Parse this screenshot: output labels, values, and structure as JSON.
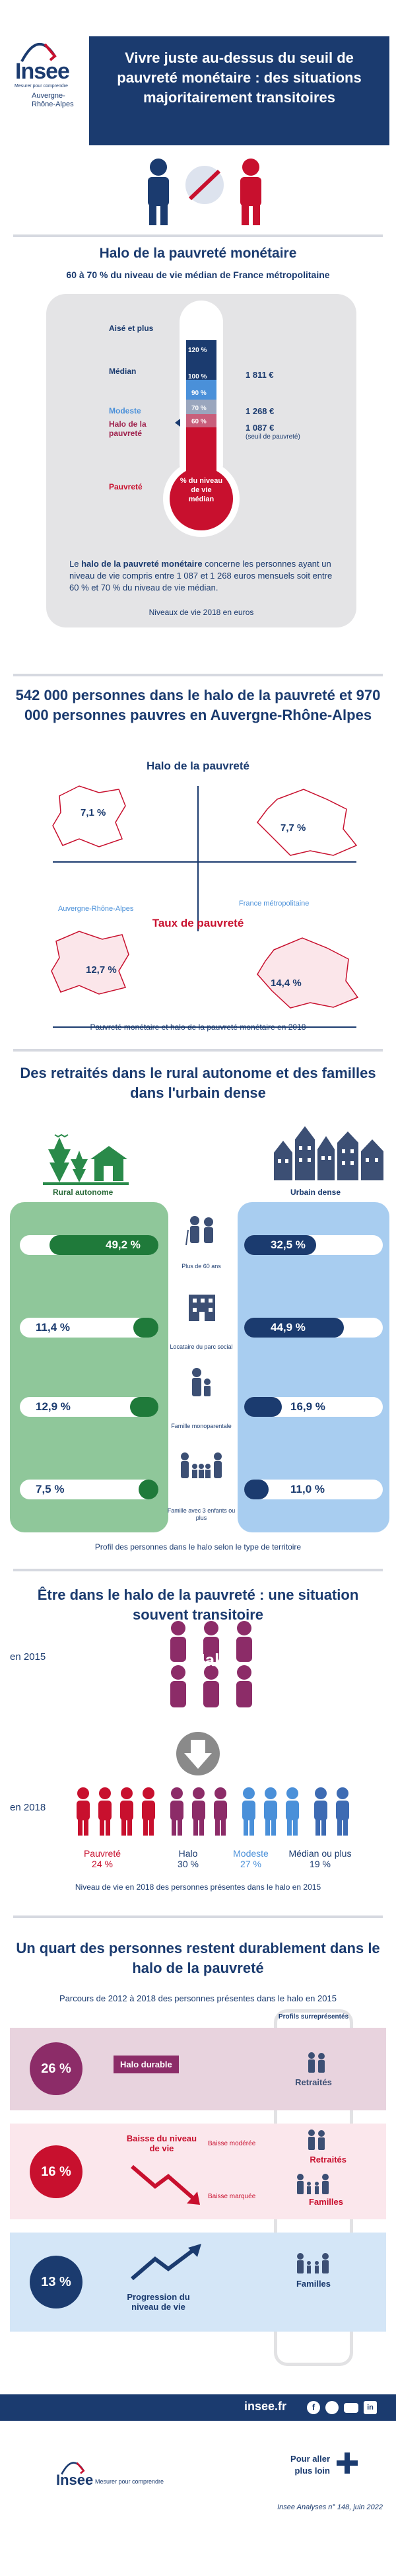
{
  "header": {
    "logo_word": "Insee",
    "logo_tagline": "Mesurer pour comprendre",
    "region_line1": "Auvergne-",
    "region_line2": "Rhône-Alpes",
    "title": "Vivre juste au-dessus du seuil de pauvreté monétaire : des situations majoritairement transitoires"
  },
  "halo": {
    "title": "Halo de la pauvreté monétaire",
    "subtitle": "60 à 70 % du niveau de vie médian de France métropolitaine",
    "levels": [
      "Aisé et plus",
      "Médian",
      "Modeste",
      "Halo de la pauvreté",
      "Pauvreté"
    ],
    "tube_marks": [
      "120 %",
      "100 %",
      "90 %",
      "70 %",
      "60 %"
    ],
    "bulb_text": "% du niveau de vie médian",
    "amounts": [
      "1 811 €",
      "1 268 €",
      "1 087 €"
    ],
    "amount_note": "(seuil de pauvreté)",
    "desc_bold": "halo de la pauvreté monétaire",
    "desc_pre": "Le ",
    "desc_post": " concerne les personnes ayant un niveau de vie compris entre 1 087 et 1 268 euros mensuels soit entre 60 % et 70 % du niveau de vie médian.",
    "caption": "Niveaux de vie 2018 en euros"
  },
  "maps": {
    "title": "542 000 personnes dans le halo de la pauvreté et 970 000 personnes pauvres en Auvergne-Rhône-Alpes",
    "halo_label": "Halo de la pauvreté",
    "halo_ara": "7,1 %",
    "halo_fr": "7,7 %",
    "region_label": "Auvergne-Rhône-Alpes",
    "france_label": "France métropolitaine",
    "pov_label": "Taux de pauvreté",
    "pov_ara": "12,7 %",
    "pov_fr": "14,4 %",
    "caption": "Pauvreté monétaire et halo de la pauvreté monétaire en 2018"
  },
  "territory": {
    "title": "Des retraités dans le rural autonome et des familles dans l'urbain dense",
    "rural_label": "Rural autonome",
    "urban_label": "Urbain dense",
    "rows": [
      {
        "rural": "49,2 %",
        "rural_frac": 0.492,
        "label": "Plus de 60 ans",
        "urban": "32,5 %",
        "urban_frac": 0.325
      },
      {
        "rural": "11,4 %",
        "rural_frac": 0.114,
        "label": "Locataire du parc social",
        "urban": "44,9 %",
        "urban_frac": 0.449
      },
      {
        "rural": "12,9 %",
        "rural_frac": 0.129,
        "label": "Famille monoparentale",
        "urban": "16,9 %",
        "urban_frac": 0.169
      },
      {
        "rural": "7,5 %",
        "rural_frac": 0.075,
        "label": "Famille avec 3 enfants ou plus",
        "urban": "11,0 %",
        "urban_frac": 0.11
      }
    ],
    "caption": "Profil des personnes dans le halo selon le type de territoire"
  },
  "transit": {
    "title": "Être dans le halo de la pauvreté : une situation souvent transitoire",
    "year_start": "en 2015",
    "halo_word": "Halo",
    "year_end": "en 2018",
    "legend": [
      {
        "label": "Pauvreté",
        "value": "24 %",
        "color": "#c8102e"
      },
      {
        "label": "Halo",
        "value": "30 %",
        "color": "#1b3b6f"
      },
      {
        "label": "Modeste",
        "value": "27 %",
        "color": "#4a90d9"
      },
      {
        "label": "Médian ou plus",
        "value": "19 %",
        "color": "#1b3b6f"
      }
    ],
    "caption": "Niveau de vie en 2018 des personnes présentes dans le halo en 2015"
  },
  "paths": {
    "title": "Un quart des personnes restent durablement dans le halo de la pauvreté",
    "subtitle": "Parcours de 2012 à 2018 des personnes présentes dans le halo en 2015",
    "profiles_header": "Profils surreprésentés",
    "rows": [
      {
        "pct": "26 %",
        "label": "Halo durable",
        "profiles": [
          "Retraités"
        ]
      },
      {
        "pct": "16 %",
        "label": "Baisse du niveau de vie",
        "sub1": "Baisse modérée",
        "sub2": "Baisse marquée",
        "profiles": [
          "Retraités",
          "Familles"
        ]
      },
      {
        "pct": "13 %",
        "label": "Progression du niveau de vie",
        "profiles": [
          "Familles"
        ]
      }
    ]
  },
  "footer": {
    "site": "insee.fr",
    "logo_word": "Insee",
    "logo_tagline": "Mesurer pour comprendre",
    "more1": "Pour aller",
    "more2": "plus loin",
    "publication": "Insee Analyses n° 148, juin 2022"
  },
  "colors": {
    "navy": "#1b3b6f",
    "red": "#c8102e",
    "green": "#8fc79a",
    "blue": "#a8cdf0",
    "pink": "#f3d6de"
  }
}
